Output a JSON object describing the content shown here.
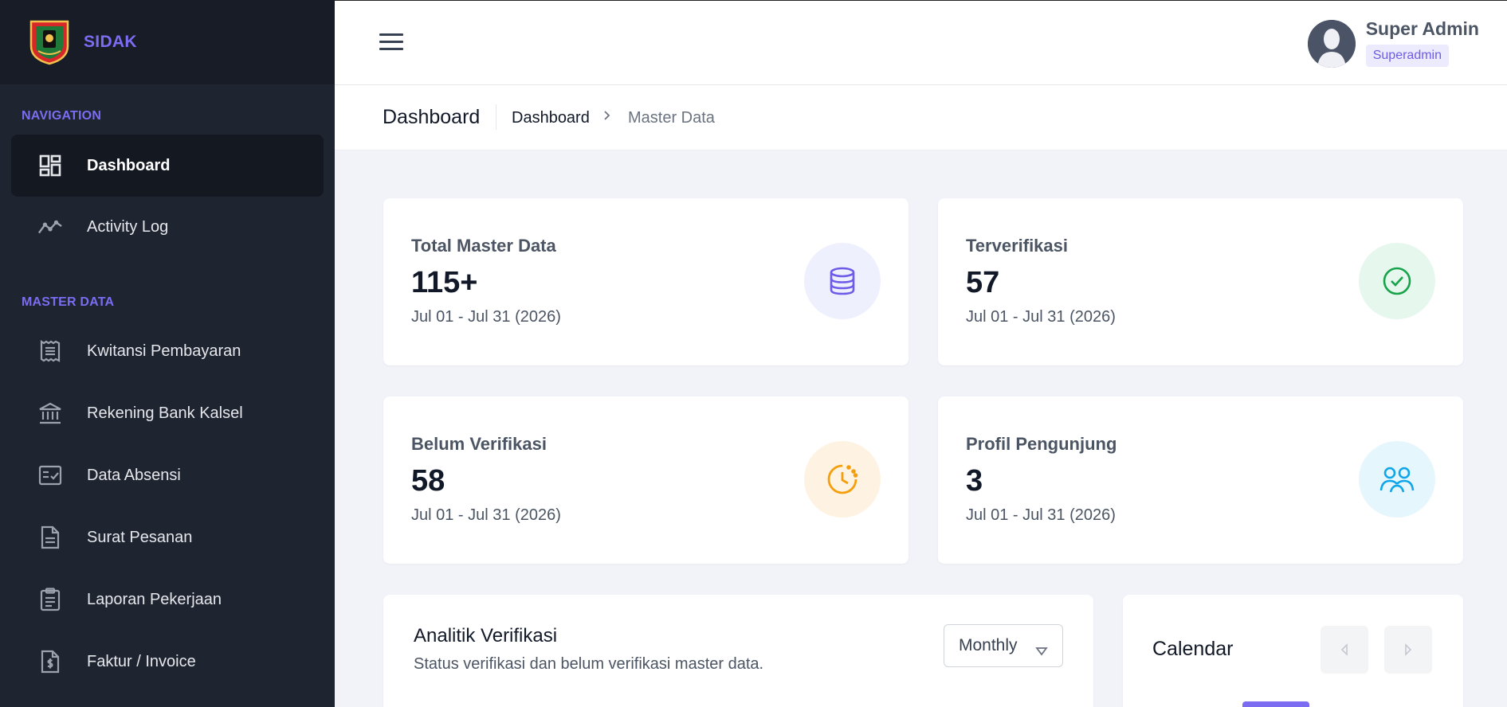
{
  "brand": {
    "name": "SIDAK"
  },
  "sidebar": {
    "sections": {
      "navigation": "NAVIGATION",
      "master": "MASTER DATA"
    },
    "items": [
      {
        "label": "Dashboard",
        "icon": "dashboard-icon",
        "active": true
      },
      {
        "label": "Activity Log",
        "icon": "activity-icon"
      },
      {
        "label": "Kwitansi Pembayaran",
        "icon": "receipt-icon"
      },
      {
        "label": "Rekening Bank Kalsel",
        "icon": "bank-icon"
      },
      {
        "label": "Data Absensi",
        "icon": "attendance-icon"
      },
      {
        "label": "Surat Pesanan",
        "icon": "document-icon"
      },
      {
        "label": "Laporan Pekerjaan",
        "icon": "clipboard-icon"
      },
      {
        "label": "Faktur / Invoice",
        "icon": "invoice-icon"
      }
    ]
  },
  "header": {
    "user_name": "Super Admin",
    "user_role": "Superadmin"
  },
  "breadcrumb": {
    "title": "Dashboard",
    "items": [
      "Dashboard",
      "Master Data"
    ],
    "separator": ">"
  },
  "stats": [
    {
      "label": "Total Master Data",
      "value": "115+",
      "range": "Jul 01 - Jul 31 (2026)",
      "icon": "database-icon",
      "icon_color": "#6d5ce7",
      "icon_bg": "#eef0fe"
    },
    {
      "label": "Terverifikasi",
      "value": "57",
      "range": "Jul 01 - Jul 31 (2026)",
      "icon": "check-circle-icon",
      "icon_color": "#16a34a",
      "icon_bg": "#e6f7ee"
    },
    {
      "label": "Belum Verifikasi",
      "value": "58",
      "range": "Jul 01 - Jul 31 (2026)",
      "icon": "clock-icon",
      "icon_color": "#f59e0b",
      "icon_bg": "#fef3e2"
    },
    {
      "label": "Profil Pengunjung",
      "value": "3",
      "range": "Jul 01 - Jul 31 (2026)",
      "icon": "users-icon",
      "icon_color": "#0ea5e9",
      "icon_bg": "#e6f6fd"
    }
  ],
  "analytics": {
    "title": "Analitik Verifikasi",
    "subtitle": "Status verifikasi dan belum verifikasi master data.",
    "period": "Monthly"
  },
  "calendar": {
    "title": "Calendar"
  },
  "colors": {
    "accent": "#7c6cf2",
    "sidebar_bg": "#1f2431",
    "page_bg": "#f1f3f9"
  }
}
